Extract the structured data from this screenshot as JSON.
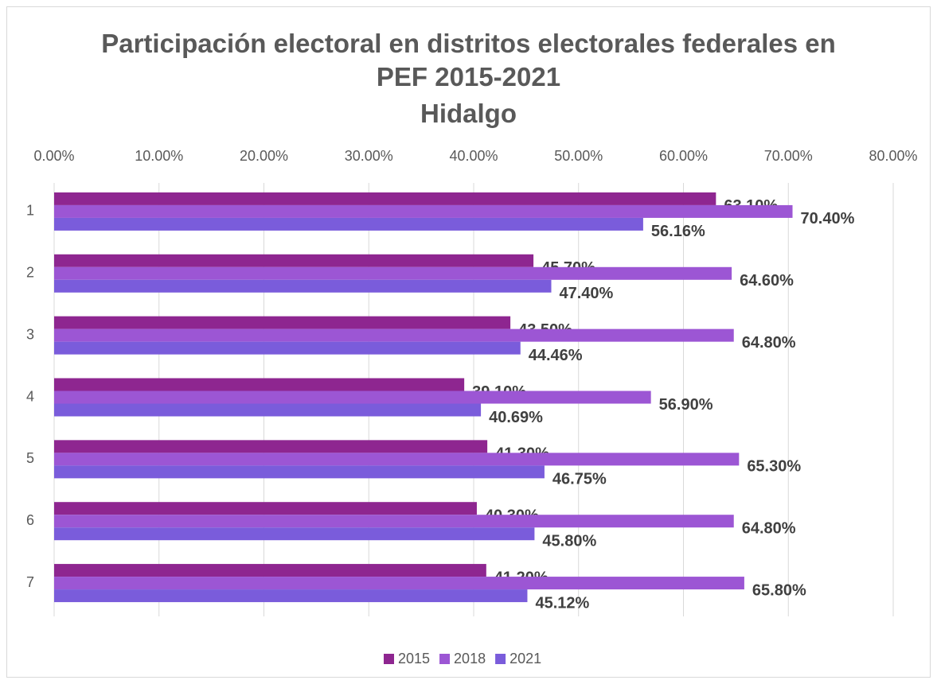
{
  "chart_data": {
    "type": "hbar",
    "title": "Participación electoral en distritos electorales federales en PEF 2015-2021",
    "subtitle": "Hidalgo",
    "categories": [
      "1",
      "2",
      "3",
      "4",
      "5",
      "6",
      "7"
    ],
    "series": [
      {
        "name": "2015",
        "color": "#8e2690",
        "values": [
          63.1,
          45.7,
          43.5,
          39.1,
          41.3,
          40.3,
          41.2
        ],
        "value_labels": [
          "63.10%",
          "45.70%",
          "43.50%",
          "39.10%",
          "41.30%",
          "40.30%",
          "41.20%"
        ]
      },
      {
        "name": "2018",
        "color": "#9c56d4",
        "values": [
          70.4,
          64.6,
          64.8,
          56.9,
          65.3,
          64.8,
          65.8
        ],
        "value_labels": [
          "70.40%",
          "64.60%",
          "64.80%",
          "56.90%",
          "65.30%",
          "64.80%",
          "65.80%"
        ]
      },
      {
        "name": "2021",
        "color": "#7a5cdb",
        "values": [
          56.16,
          47.4,
          44.46,
          40.69,
          46.75,
          45.8,
          45.12
        ],
        "value_labels": [
          "56.16%",
          "47.40%",
          "44.46%",
          "40.69%",
          "46.75%",
          "45.80%",
          "45.12%"
        ]
      }
    ],
    "xlim": [
      0,
      80
    ],
    "xticks": [
      {
        "value": 0,
        "label": "0.00%"
      },
      {
        "value": 10,
        "label": "10.00%"
      },
      {
        "value": 20,
        "label": "20.00%"
      },
      {
        "value": 30,
        "label": "30.00%"
      },
      {
        "value": 40,
        "label": "40.00%"
      },
      {
        "value": 50,
        "label": "50.00%"
      },
      {
        "value": 60,
        "label": "60.00%"
      },
      {
        "value": 70,
        "label": "70.00%"
      },
      {
        "value": 80,
        "label": "80.00%"
      }
    ],
    "grid": true,
    "legend": "bottom"
  }
}
